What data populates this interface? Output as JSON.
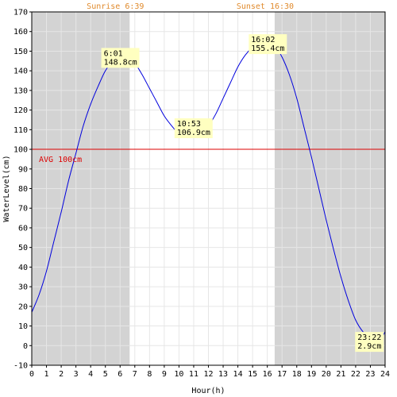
{
  "chart_data": {
    "type": "line",
    "title": "",
    "xlabel": "Hour(h)",
    "ylabel": "WaterLevel(cm)",
    "xlim": [
      0,
      24
    ],
    "ylim": [
      -10,
      170
    ],
    "x_ticks": [
      0,
      1,
      2,
      3,
      4,
      5,
      6,
      7,
      8,
      9,
      10,
      11,
      12,
      13,
      14,
      15,
      16,
      17,
      18,
      19,
      20,
      21,
      22,
      23,
      24
    ],
    "y_ticks": [
      -10,
      0,
      10,
      20,
      30,
      40,
      50,
      60,
      70,
      80,
      90,
      100,
      110,
      120,
      130,
      140,
      150,
      160,
      170
    ],
    "grid": true,
    "sunrise": {
      "label": "Sunrise 6:39",
      "hour": 6.65
    },
    "sunset": {
      "label": "Sunset 16:30",
      "hour": 16.5
    },
    "night_shading_color": "#d3d3d3",
    "average": {
      "label": "AVG 100cm",
      "value": 100,
      "color": "#dd0000"
    },
    "line_color": "#0000dd",
    "annotation_color": "#ffffc0",
    "series": [
      {
        "x": [
          0,
          0.5,
          1,
          1.5,
          2,
          2.5,
          3,
          3.5,
          4,
          4.5,
          5,
          5.5,
          6.017,
          6.5,
          7,
          7.5,
          8,
          8.5,
          9,
          9.5,
          10,
          10.5,
          10.883,
          11.5,
          12,
          12.5,
          13,
          13.5,
          14,
          14.5,
          15,
          15.5,
          16.033,
          16.5,
          17,
          17.5,
          18,
          18.5,
          19,
          19.5,
          20,
          20.5,
          21,
          21.5,
          22,
          22.5,
          23,
          23.367,
          23.7,
          24
        ],
        "values": [
          17,
          26,
          38,
          53,
          68,
          84,
          98,
          112,
          123,
          132,
          140,
          145,
          148.8,
          148,
          144,
          138,
          131,
          124,
          117,
          112,
          108,
          107,
          106.9,
          108,
          112,
          118,
          126,
          134,
          142,
          148,
          152,
          154.5,
          155.4,
          153,
          147,
          138,
          126,
          111,
          96,
          80,
          64,
          49,
          35,
          23,
          13,
          7,
          3.5,
          2.9,
          3.5,
          7
        ]
      }
    ],
    "annotations": [
      {
        "time": "6:01",
        "value": "148.8cm",
        "x": 6.017,
        "y": 148.8
      },
      {
        "time": "10:53",
        "value": "106.9cm",
        "x": 10.883,
        "y": 106.9
      },
      {
        "time": "16:02",
        "value": "155.4cm",
        "x": 16.033,
        "y": 155.4
      },
      {
        "time": "23:22",
        "value": "2.9cm",
        "x": 23.367,
        "y": 2.9
      }
    ]
  }
}
